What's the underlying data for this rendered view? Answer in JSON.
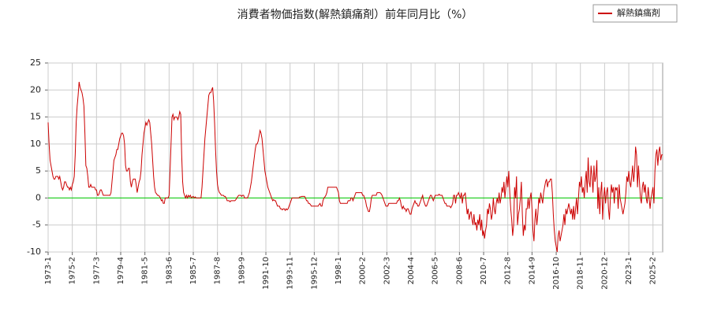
{
  "chart_data": {
    "type": "line",
    "title": "消費者物価指数(解熱鎮痛剤）前年同月比（%）",
    "categories": [
      "1973-1",
      null,
      null,
      null,
      null,
      null,
      null,
      null,
      null,
      null,
      null,
      null,
      null,
      null,
      null,
      null,
      null,
      null,
      null,
      null,
      null,
      null,
      null,
      null,
      null,
      "1975-2",
      null,
      null,
      null,
      null,
      null,
      null,
      null,
      null,
      null,
      null,
      null,
      null,
      null,
      null,
      null,
      null,
      null,
      null,
      null,
      null,
      null,
      null,
      null,
      null,
      "1977-3",
      null,
      null,
      null,
      null,
      null,
      null,
      null,
      null,
      null,
      null,
      null,
      null,
      null,
      null,
      null,
      null,
      null,
      null,
      null,
      null,
      null,
      null,
      null,
      null,
      "1979-4",
      null,
      null,
      null,
      null,
      null,
      null,
      null,
      null,
      null,
      null,
      null,
      null,
      null,
      null,
      null,
      null,
      null,
      null,
      null,
      null,
      null,
      null,
      null,
      null,
      "1981-5",
      null,
      null,
      null,
      null,
      null,
      null,
      null,
      null,
      null,
      null,
      null,
      null,
      null,
      null,
      null,
      null,
      null,
      null,
      null,
      null,
      null,
      null,
      null,
      null,
      "1983-6",
      null,
      null,
      null,
      null,
      null,
      null,
      null,
      null,
      null,
      null,
      null,
      null,
      null,
      null,
      null,
      null,
      null,
      null,
      null,
      null,
      null,
      null,
      null,
      null,
      "1985-7",
      null,
      null,
      null,
      null,
      null,
      null,
      null,
      null,
      null,
      null,
      null,
      null,
      null,
      null,
      null,
      null,
      null,
      null,
      null,
      null,
      null,
      null,
      null,
      null,
      "1987-8",
      null,
      null,
      null,
      null,
      null,
      null,
      null,
      null,
      null,
      null,
      null,
      null,
      null,
      null,
      null,
      null,
      null,
      null,
      null,
      null,
      null,
      null,
      null,
      null,
      "1989-9",
      null,
      null,
      null,
      null,
      null,
      null,
      null,
      null,
      null,
      null,
      null,
      null,
      null,
      null,
      null,
      null,
      null,
      null,
      null,
      null,
      null,
      null,
      null,
      null,
      "1991-10",
      null,
      null,
      null,
      null,
      null,
      null,
      null,
      null,
      null,
      null,
      null,
      null,
      null,
      null,
      null,
      null,
      null,
      null,
      null,
      null,
      null,
      null,
      null,
      null,
      "1993-11",
      null,
      null,
      null,
      null,
      null,
      null,
      null,
      null,
      null,
      null,
      null,
      null,
      null,
      null,
      null,
      null,
      null,
      null,
      null,
      null,
      null,
      null,
      null,
      null,
      "1995-12",
      null,
      null,
      null,
      null,
      null,
      null,
      null,
      null,
      null,
      null,
      null,
      null,
      null,
      null,
      null,
      null,
      null,
      null,
      null,
      null,
      null,
      null,
      null,
      null,
      "1998-1",
      null,
      null,
      null,
      null,
      null,
      null,
      null,
      null,
      null,
      null,
      null,
      null,
      null,
      null,
      null,
      null,
      null,
      null,
      null,
      null,
      null,
      null,
      null,
      null,
      "2000-2",
      null,
      null,
      null,
      null,
      null,
      null,
      null,
      null,
      null,
      null,
      null,
      null,
      null,
      null,
      null,
      null,
      null,
      null,
      null,
      null,
      null,
      null,
      null,
      null,
      "2002-3",
      null,
      null,
      null,
      null,
      null,
      null,
      null,
      null,
      null,
      null,
      null,
      null,
      null,
      null,
      null,
      null,
      null,
      null,
      null,
      null,
      null,
      null,
      null,
      null,
      "2004-4",
      null,
      null,
      null,
      null,
      null,
      null,
      null,
      null,
      null,
      null,
      null,
      null,
      null,
      null,
      null,
      null,
      null,
      null,
      null,
      null,
      null,
      null,
      null,
      null,
      "2006-5",
      null,
      null,
      null,
      null,
      null,
      null,
      null,
      null,
      null,
      null,
      null,
      null,
      null,
      null,
      null,
      null,
      null,
      null,
      null,
      null,
      null,
      null,
      null,
      null,
      "2008-6",
      null,
      null,
      null,
      null,
      null,
      null,
      null,
      null,
      null,
      null,
      null,
      null,
      null,
      null,
      null,
      null,
      null,
      null,
      null,
      null,
      null,
      null,
      null,
      null,
      "2010-7",
      null,
      null,
      null,
      null,
      null,
      null,
      null,
      null,
      null,
      null,
      null,
      null,
      null,
      null,
      null,
      null,
      null,
      null,
      null,
      null,
      null,
      null,
      null,
      null,
      "2012-8",
      null,
      null,
      null,
      null,
      null,
      null,
      null,
      null,
      null,
      null,
      null,
      null,
      null,
      null,
      null,
      null,
      null,
      null,
      null,
      null,
      null,
      null,
      null,
      null,
      "2014-9",
      null,
      null,
      null,
      null,
      null,
      null,
      null,
      null,
      null,
      null,
      null,
      null,
      null,
      null,
      null,
      null,
      null,
      null,
      null,
      null,
      null,
      null,
      null,
      null,
      "2016-10",
      null,
      null,
      null,
      null,
      null,
      null,
      null,
      null,
      null,
      null,
      null,
      null,
      null,
      null,
      null,
      null,
      null,
      null,
      null,
      null,
      null,
      null,
      null,
      null,
      "2018-11",
      null,
      null,
      null,
      null,
      null,
      null,
      null,
      null,
      null,
      null,
      null,
      null,
      null,
      null,
      null,
      null,
      null,
      null,
      null,
      null,
      null,
      null,
      null,
      null,
      "2020-12",
      null,
      null,
      null,
      null,
      null,
      null,
      null,
      null,
      null,
      null,
      null,
      null,
      null,
      null,
      null,
      null,
      null,
      null,
      null,
      null,
      null,
      null,
      null,
      null,
      "2023-1",
      null,
      null,
      null,
      null,
      null,
      null,
      null,
      null,
      null,
      null,
      null,
      null,
      null,
      null,
      null,
      null,
      null,
      null,
      null,
      null,
      null,
      null,
      null,
      null,
      "2025-2",
      null,
      null,
      null,
      null,
      null,
      null,
      null,
      null,
      null,
      null
    ],
    "series": [
      {
        "name": "解熱鎮痛剤",
        "color": "#cc0000",
        "values": [
          14,
          10,
          7,
          6,
          5,
          4,
          3.5,
          3.5,
          4,
          4,
          4,
          3.5,
          4,
          3,
          2,
          1.5,
          2,
          3,
          3,
          2.5,
          2,
          2,
          1.5,
          2,
          1.5,
          2.5,
          3,
          4,
          8,
          14,
          17,
          19,
          21.5,
          20.5,
          20,
          19.5,
          18.5,
          17,
          12,
          6,
          5.5,
          4,
          2,
          2,
          2.5,
          2,
          2,
          2,
          2,
          1.5,
          1.5,
          0.5,
          0.5,
          1,
          1.5,
          1.5,
          1,
          0.5,
          0.5,
          0.5,
          0.5,
          0.5,
          0.5,
          0.5,
          0.5,
          1,
          3,
          5,
          7,
          7.5,
          8,
          9,
          9,
          10,
          11,
          11.5,
          12,
          12,
          11.5,
          10,
          6,
          5,
          5,
          5.5,
          5.5,
          3,
          2,
          3,
          3.5,
          3.5,
          3.5,
          2.5,
          1,
          2,
          3,
          3.5,
          5,
          8,
          10,
          12,
          13,
          14,
          13.5,
          14,
          14.5,
          14,
          12,
          10,
          7,
          4,
          2,
          1,
          0.8,
          0.5,
          0.5,
          0.3,
          0,
          -0.5,
          -0.3,
          -1,
          -1,
          0,
          0,
          0,
          0,
          0.5,
          5,
          10,
          15,
          15.5,
          14.5,
          15,
          15,
          15,
          14.5,
          15,
          16,
          15.5,
          8,
          3,
          1,
          0.5,
          0,
          0.5,
          0,
          0.5,
          0.2,
          0.5,
          0,
          0.2,
          0.3,
          0,
          0.2,
          0,
          0,
          0,
          0,
          0,
          0,
          2,
          5,
          8,
          11,
          13,
          15,
          17,
          19,
          19.5,
          19.5,
          20,
          20.5,
          18,
          14,
          9,
          5,
          2.5,
          1.5,
          1,
          0.8,
          0.5,
          0.5,
          0.5,
          0.3,
          0.3,
          0,
          -0.5,
          -0.5,
          -0.5,
          -0.7,
          -0.5,
          -0.5,
          -0.5,
          -0.5,
          -0.5,
          -0.3,
          0,
          0.3,
          0.5,
          0.5,
          0.5,
          0.3,
          0.5,
          0.5,
          0,
          0,
          0,
          0,
          0.5,
          1,
          2,
          3,
          4.5,
          6,
          7.5,
          9,
          10,
          10,
          10.5,
          11.5,
          12.5,
          12,
          11,
          9,
          7,
          5,
          4,
          3,
          2,
          1.5,
          1,
          0.5,
          0,
          -0.5,
          -0.3,
          -0.5,
          -0.5,
          -1,
          -1.5,
          -1.5,
          -1.5,
          -2,
          -2,
          -2.2,
          -2,
          -2,
          -2.3,
          -2,
          -2.2,
          -2,
          -1.5,
          -1,
          -0.5,
          0,
          0,
          0,
          0,
          0,
          0,
          0,
          0,
          0.2,
          0.2,
          0.3,
          0.3,
          0.3,
          0.3,
          0,
          -0.5,
          -0.5,
          -1,
          -1,
          -1.2,
          -1.5,
          -1.5,
          -1.5,
          -1.5,
          -1.5,
          -1.5,
          -1.5,
          -1.5,
          -1.2,
          -1,
          -1.5,
          -1.5,
          -0.5,
          0,
          0.2,
          0.5,
          1,
          2,
          2,
          2,
          2,
          2,
          2,
          2,
          2,
          2,
          2,
          1.5,
          1,
          -0.5,
          -1,
          -1,
          -1,
          -1,
          -1,
          -1,
          -1,
          -1,
          -0.5,
          -0.5,
          -0.5,
          0,
          0,
          -0.5,
          0,
          0.5,
          1,
          1,
          1,
          1,
          1,
          1,
          1,
          0.5,
          0.5,
          0,
          -0.5,
          -1.5,
          -2,
          -2.5,
          -2.5,
          -1.5,
          0,
          0.5,
          0.5,
          0.5,
          0.5,
          0.5,
          1,
          1,
          1,
          1,
          0.8,
          0.5,
          0,
          -0.5,
          -1,
          -1.5,
          -1.5,
          -1.5,
          -1,
          -1,
          -1,
          -1,
          -1,
          -1,
          -1,
          -1,
          -1,
          -0.5,
          -0.5,
          0,
          -0.5,
          -1.5,
          -2,
          -1.5,
          -2,
          -2,
          -2.5,
          -2,
          -2,
          -2.5,
          -3,
          -3,
          -2,
          -1.5,
          -1,
          -0.5,
          -1,
          -1,
          -1.5,
          -1.5,
          -1,
          -0.5,
          0,
          0.5,
          -0.5,
          -1,
          -1.5,
          -1.5,
          -1,
          -0.5,
          0,
          0.5,
          0.5,
          0,
          -0.5,
          0,
          0.5,
          0.5,
          0.5,
          0.5,
          0.7,
          0.5,
          0.5,
          0.5,
          0,
          -0.5,
          -1,
          -1,
          -1.5,
          -1.5,
          -1.5,
          -1.5,
          -1.8,
          -1.5,
          -1,
          0.5,
          0.5,
          -1,
          0.5,
          0.5,
          1,
          0.5,
          0,
          1,
          -1,
          0.5,
          0.5,
          1,
          -1,
          -3,
          -2,
          -4,
          -3,
          -2.5,
          -4,
          -5,
          -3,
          -5,
          -4.5,
          -6,
          -4,
          -5,
          -3,
          -6,
          -4,
          -7,
          -6,
          -7.5,
          -6,
          -5,
          -2,
          -3,
          -1,
          -2,
          -4,
          -3,
          0,
          -2,
          -3,
          -1,
          0,
          -1,
          1,
          -1,
          0,
          2,
          1,
          3,
          0,
          2,
          4,
          2,
          5,
          1,
          -2,
          -4,
          -7,
          -5,
          2,
          0,
          4,
          -5,
          -3,
          -2,
          0,
          3,
          -3,
          -7,
          -5,
          -6,
          -2,
          -2,
          0,
          -2,
          0,
          1,
          -2,
          -6,
          -8,
          -4,
          -2,
          -5,
          -3,
          0,
          -1,
          1,
          0,
          -1,
          1,
          2,
          3,
          3.5,
          2,
          3,
          3,
          3.5,
          3.5,
          1,
          -3,
          -6,
          -8,
          -9,
          -10,
          -7,
          -6,
          -8,
          -7,
          -6,
          -5,
          -3,
          -5,
          -2,
          -3,
          -2,
          -1,
          -2,
          -3,
          -2,
          -4,
          -1.5,
          -4,
          -2,
          0,
          -3,
          0,
          3,
          2,
          4,
          1,
          2,
          0,
          3,
          5,
          1,
          7.5,
          3,
          2,
          6,
          4,
          1,
          6,
          3,
          4,
          7,
          -2,
          2,
          -3,
          1,
          3,
          -4,
          0,
          2,
          -1,
          1,
          2,
          -2,
          -4,
          0,
          2.5,
          1,
          2,
          -1,
          2,
          1.5,
          2,
          -2,
          2.5,
          0,
          -1,
          -2,
          -3,
          -2,
          -1,
          1,
          4,
          3,
          5,
          3,
          2,
          4,
          6,
          3,
          5,
          9.5,
          8,
          2,
          6,
          3,
          0,
          -1,
          2,
          3,
          1,
          2.5,
          0,
          -1,
          2,
          0,
          -2,
          0,
          1,
          2,
          -1,
          5,
          8,
          9,
          6,
          8.5,
          9.5,
          7,
          8,
          8
        ]
      }
    ],
    "ylim": [
      -10,
      25
    ],
    "yticks": [
      -10,
      -5,
      0,
      5,
      10,
      15,
      20,
      25
    ],
    "grid": true,
    "baseline_color": "#00cc00",
    "legend": "upper right"
  }
}
